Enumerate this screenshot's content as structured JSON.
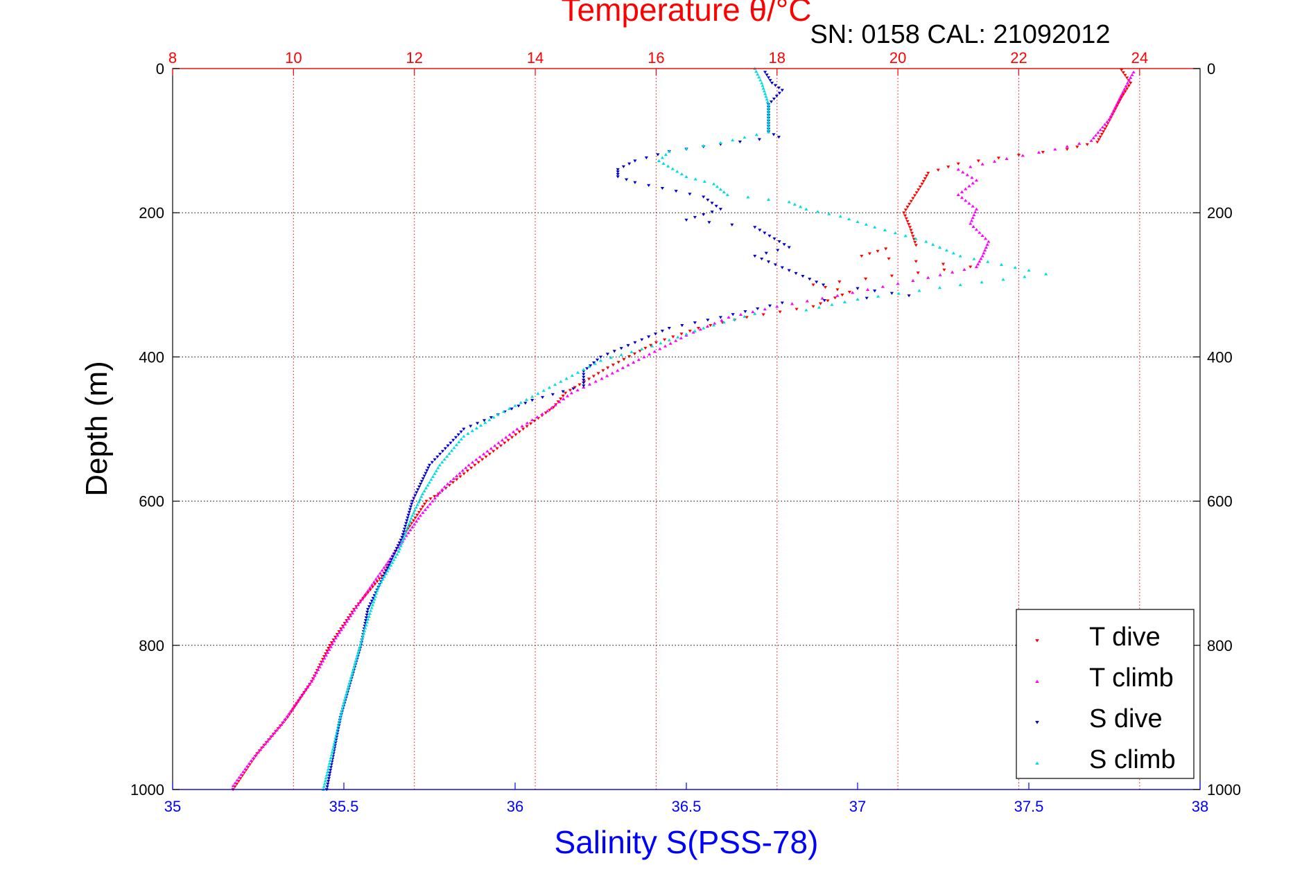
{
  "chart_data": {
    "type": "scatter",
    "title": "Temperature θ/°C",
    "subtitle": "SN: 0158   CAL: 21092012",
    "ylabel": "Depth (m)",
    "xlabel": "Salinity S(PSS-78)",
    "top_axis": {
      "label": "Temperature θ/°C",
      "range": [
        8,
        25
      ],
      "ticks": [
        "8",
        "10",
        "12",
        "14",
        "16",
        "18",
        "20",
        "22",
        "24"
      ],
      "color": "#ff0000",
      "grid": true
    },
    "bottom_axis": {
      "label": "Salinity S(PSS-78)",
      "range": [
        35,
        38
      ],
      "ticks": [
        "35",
        "35.5",
        "36",
        "36.5",
        "37",
        "37.5",
        "38"
      ],
      "color": "#0000ff",
      "grid": false
    },
    "y_axis": {
      "range": [
        0,
        1000
      ],
      "reversed": true,
      "ticks": [
        "0",
        "200",
        "400",
        "600",
        "800",
        "1000"
      ],
      "grid": true
    },
    "legend": {
      "placement": "bottom-right",
      "entries": [
        "T dive",
        "T climb",
        "S dive",
        "S climb"
      ]
    },
    "series": [
      {
        "name": "T dive",
        "axis": "temperature",
        "color": "#ff0000",
        "marker": "triangle-down",
        "points": [
          [
            23.7,
            2
          ],
          [
            23.85,
            20
          ],
          [
            23.7,
            40
          ],
          [
            23.45,
            80
          ],
          [
            23.3,
            102
          ],
          [
            22.8,
            112
          ],
          [
            22.0,
            120
          ],
          [
            21.0,
            132
          ],
          [
            20.5,
            145
          ],
          [
            20.4,
            160
          ],
          [
            20.1,
            200
          ],
          [
            20.2,
            220
          ],
          [
            20.3,
            245
          ],
          [
            19.8,
            250
          ],
          [
            19.4,
            260
          ],
          [
            21.2,
            275
          ],
          [
            18.6,
            300
          ],
          [
            19.2,
            310
          ],
          [
            18.6,
            330
          ],
          [
            17.5,
            345
          ],
          [
            16.7,
            360
          ],
          [
            16.0,
            380
          ],
          [
            15.2,
            415
          ],
          [
            14.5,
            450
          ],
          [
            14.3,
            470
          ],
          [
            13.8,
            500
          ],
          [
            13.0,
            550
          ],
          [
            12.4,
            590
          ],
          [
            12.2,
            600
          ],
          [
            11.8,
            650
          ],
          [
            11.5,
            700
          ],
          [
            11.0,
            750
          ],
          [
            10.6,
            800
          ],
          [
            10.3,
            850
          ],
          [
            9.9,
            900
          ],
          [
            9.4,
            950
          ],
          [
            9.0,
            1000
          ]
        ]
      },
      {
        "name": "T climb",
        "axis": "temperature",
        "color": "#ff00ff",
        "marker": "triangle-up",
        "points": [
          [
            23.9,
            5
          ],
          [
            23.8,
            20
          ],
          [
            23.65,
            45
          ],
          [
            23.5,
            70
          ],
          [
            23.2,
            100
          ],
          [
            22.6,
            112
          ],
          [
            21.8,
            125
          ],
          [
            21.0,
            140
          ],
          [
            21.3,
            155
          ],
          [
            21.0,
            175
          ],
          [
            21.3,
            195
          ],
          [
            21.2,
            215
          ],
          [
            21.5,
            240
          ],
          [
            21.4,
            260
          ],
          [
            21.3,
            275
          ],
          [
            20.5,
            290
          ],
          [
            19.0,
            315
          ],
          [
            18.0,
            330
          ],
          [
            17.2,
            345
          ],
          [
            16.5,
            370
          ],
          [
            15.8,
            400
          ],
          [
            15.1,
            430
          ],
          [
            14.6,
            450
          ],
          [
            14.2,
            475
          ],
          [
            13.7,
            500
          ],
          [
            12.9,
            550
          ],
          [
            12.5,
            580
          ],
          [
            12.1,
            620
          ],
          [
            11.6,
            680
          ],
          [
            11.1,
            740
          ],
          [
            10.7,
            790
          ],
          [
            10.3,
            850
          ],
          [
            9.8,
            910
          ],
          [
            9.3,
            960
          ],
          [
            9.0,
            995
          ]
        ]
      },
      {
        "name": "S dive",
        "axis": "salinity",
        "color": "#0000cc",
        "marker": "triangle-down",
        "points": [
          [
            36.73,
            5
          ],
          [
            36.75,
            20
          ],
          [
            36.78,
            30
          ],
          [
            36.74,
            50
          ],
          [
            36.74,
            88
          ],
          [
            36.77,
            95
          ],
          [
            36.6,
            105
          ],
          [
            36.45,
            115
          ],
          [
            36.35,
            128
          ],
          [
            36.3,
            140
          ],
          [
            36.3,
            150
          ],
          [
            36.35,
            158
          ],
          [
            36.55,
            178
          ],
          [
            36.6,
            195
          ],
          [
            36.5,
            210
          ],
          [
            36.7,
            220
          ],
          [
            36.8,
            248
          ],
          [
            36.7,
            260
          ],
          [
            36.9,
            300
          ],
          [
            37.0,
            305
          ],
          [
            37.15,
            315
          ],
          [
            36.78,
            325
          ],
          [
            36.6,
            345
          ],
          [
            36.45,
            360
          ],
          [
            36.35,
            380
          ],
          [
            36.25,
            400
          ],
          [
            36.2,
            420
          ],
          [
            36.2,
            440
          ],
          [
            36.05,
            460
          ],
          [
            35.95,
            480
          ],
          [
            35.85,
            500
          ],
          [
            35.75,
            550
          ],
          [
            35.72,
            580
          ],
          [
            35.7,
            600
          ],
          [
            35.67,
            650
          ],
          [
            35.62,
            700
          ],
          [
            35.57,
            750
          ],
          [
            35.55,
            800
          ],
          [
            35.52,
            850
          ],
          [
            35.49,
            900
          ],
          [
            35.47,
            950
          ],
          [
            35.45,
            1000
          ]
        ]
      },
      {
        "name": "S climb",
        "axis": "salinity",
        "color": "#00dddd",
        "marker": "triangle-up",
        "points": [
          [
            36.7,
            0
          ],
          [
            36.72,
            20
          ],
          [
            36.74,
            50
          ],
          [
            36.74,
            88
          ],
          [
            36.6,
            103
          ],
          [
            36.45,
            115
          ],
          [
            36.42,
            128
          ],
          [
            36.5,
            150
          ],
          [
            36.58,
            160
          ],
          [
            36.62,
            175
          ],
          [
            36.8,
            185
          ],
          [
            36.85,
            195
          ],
          [
            36.95,
            205
          ],
          [
            37.05,
            220
          ],
          [
            37.2,
            240
          ],
          [
            37.3,
            260
          ],
          [
            37.5,
            280
          ],
          [
            37.55,
            285
          ],
          [
            37.3,
            300
          ],
          [
            37.0,
            320
          ],
          [
            36.85,
            335
          ],
          [
            36.7,
            340
          ],
          [
            36.55,
            360
          ],
          [
            36.4,
            385
          ],
          [
            36.25,
            405
          ],
          [
            36.15,
            430
          ],
          [
            36.05,
            455
          ],
          [
            35.95,
            480
          ],
          [
            35.85,
            510
          ],
          [
            35.78,
            550
          ],
          [
            35.73,
            590
          ],
          [
            35.7,
            620
          ],
          [
            35.66,
            670
          ],
          [
            35.6,
            720
          ],
          [
            35.56,
            780
          ],
          [
            35.53,
            830
          ],
          [
            35.5,
            880
          ],
          [
            35.47,
            940
          ],
          [
            35.44,
            1000
          ]
        ]
      }
    ]
  }
}
